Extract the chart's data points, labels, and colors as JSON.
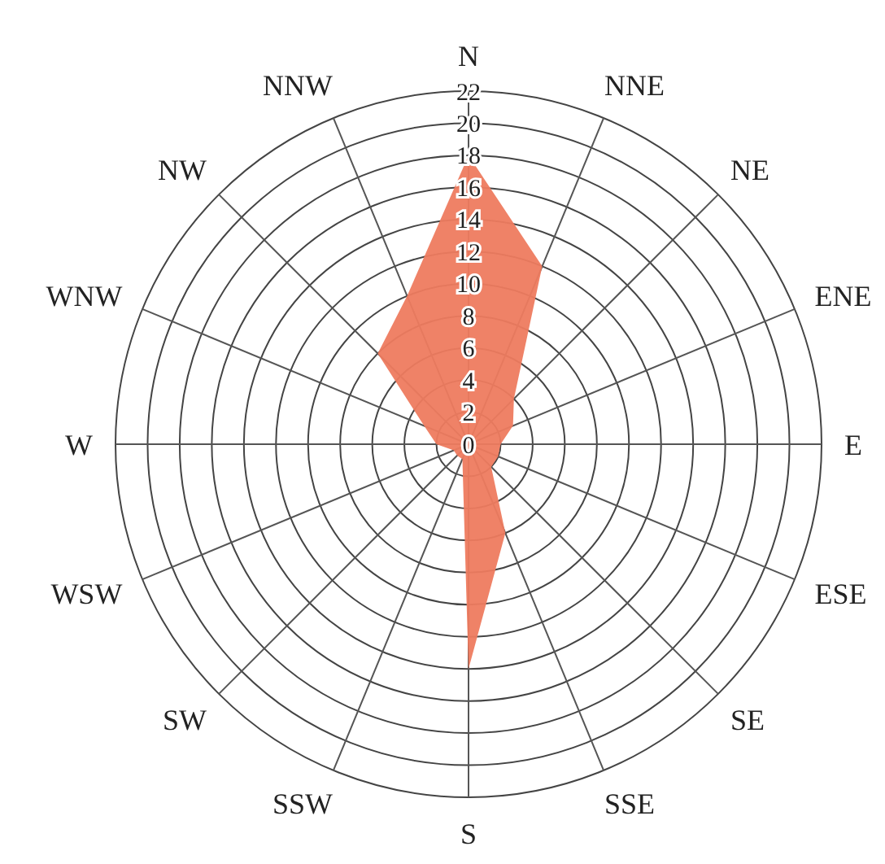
{
  "chart_data": {
    "type": "radar",
    "categories": [
      "N",
      "NNE",
      "NE",
      "ENE",
      "E",
      "ESE",
      "SE",
      "SSE",
      "S",
      "SSW",
      "SW",
      "WSW",
      "W",
      "WNW",
      "NW",
      "NNW"
    ],
    "series": [
      {
        "color": "#ee7b5f",
        "values": [
          18,
          12,
          4,
          3,
          2,
          2,
          2,
          6,
          14,
          1,
          1,
          1,
          2,
          3,
          8,
          10
        ]
      }
    ],
    "ylim": [
      0,
      22
    ],
    "yticks": [
      0,
      2,
      4,
      6,
      8,
      10,
      12,
      14,
      16,
      18,
      20,
      22
    ],
    "grid": true
  }
}
